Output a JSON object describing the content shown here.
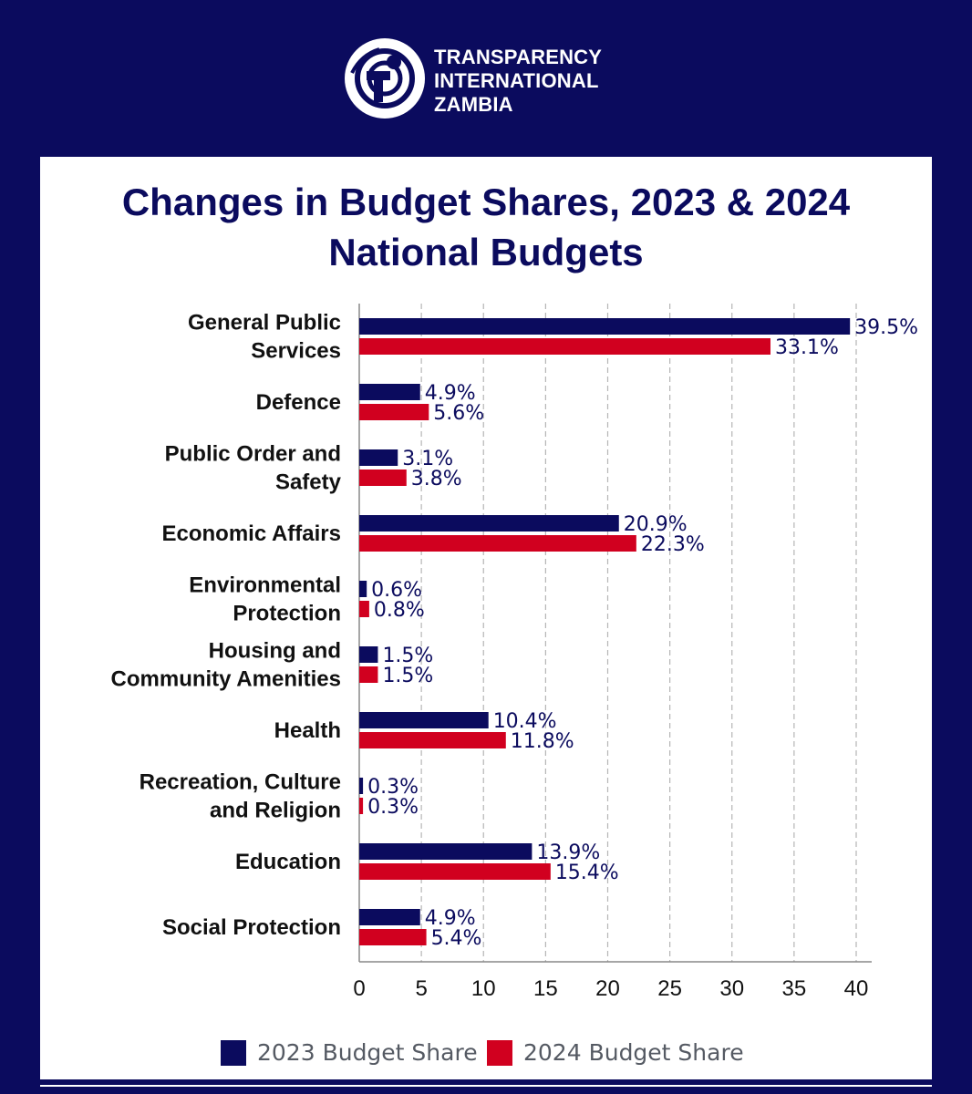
{
  "header": {
    "org_lines": [
      "TRANSPARENCY",
      "INTERNATIONAL",
      "ZAMBIA"
    ]
  },
  "colors": {
    "navy": "#0b0b5e",
    "red": "#d1001f",
    "background": "#0b0b5e",
    "panel": "#ffffff",
    "grid": "#b5b5b5"
  },
  "chart_data": {
    "type": "bar",
    "orientation": "horizontal",
    "title_lines": [
      "Changes in Budget Shares, 2023 & 2024",
      "National Budgets"
    ],
    "categories": [
      [
        "General Public",
        "Services"
      ],
      [
        "Defence"
      ],
      [
        "Public Order and",
        "Safety"
      ],
      [
        "Economic Affairs"
      ],
      [
        "Environmental",
        "Protection"
      ],
      [
        "Housing and",
        "Community Amenities"
      ],
      [
        "Health"
      ],
      [
        "Recreation, Culture",
        "and Religion"
      ],
      [
        "Education"
      ],
      [
        "Social Protection"
      ]
    ],
    "series": [
      {
        "name": "2023 Budget Share",
        "color": "#0b0b5e",
        "values": [
          39.5,
          4.9,
          3.1,
          20.9,
          0.6,
          1.5,
          10.4,
          0.3,
          13.9,
          4.9
        ],
        "labels": [
          "39.5%",
          "4.9%",
          "3.1%",
          "20.9%",
          "0.6%",
          "1.5%",
          "10.4%",
          "0.3%",
          "13.9%",
          "4.9%"
        ]
      },
      {
        "name": "2024 Budget Share",
        "color": "#d1001f",
        "values": [
          33.1,
          5.6,
          3.8,
          22.3,
          0.8,
          1.5,
          11.8,
          0.3,
          15.4,
          5.4
        ],
        "labels": [
          "33.1%",
          "5.6%",
          "3.8%",
          "22.3%",
          "0.8%",
          "1.5%",
          "11.8%",
          "0.3%",
          "15.4%",
          "5.4%"
        ]
      }
    ],
    "xlim": [
      0,
      40
    ],
    "xticks": [
      "0",
      "5",
      "10",
      "15",
      "20",
      "25",
      "30",
      "35",
      "40"
    ],
    "grid": "vertical dashed",
    "legend_position": "bottom"
  }
}
